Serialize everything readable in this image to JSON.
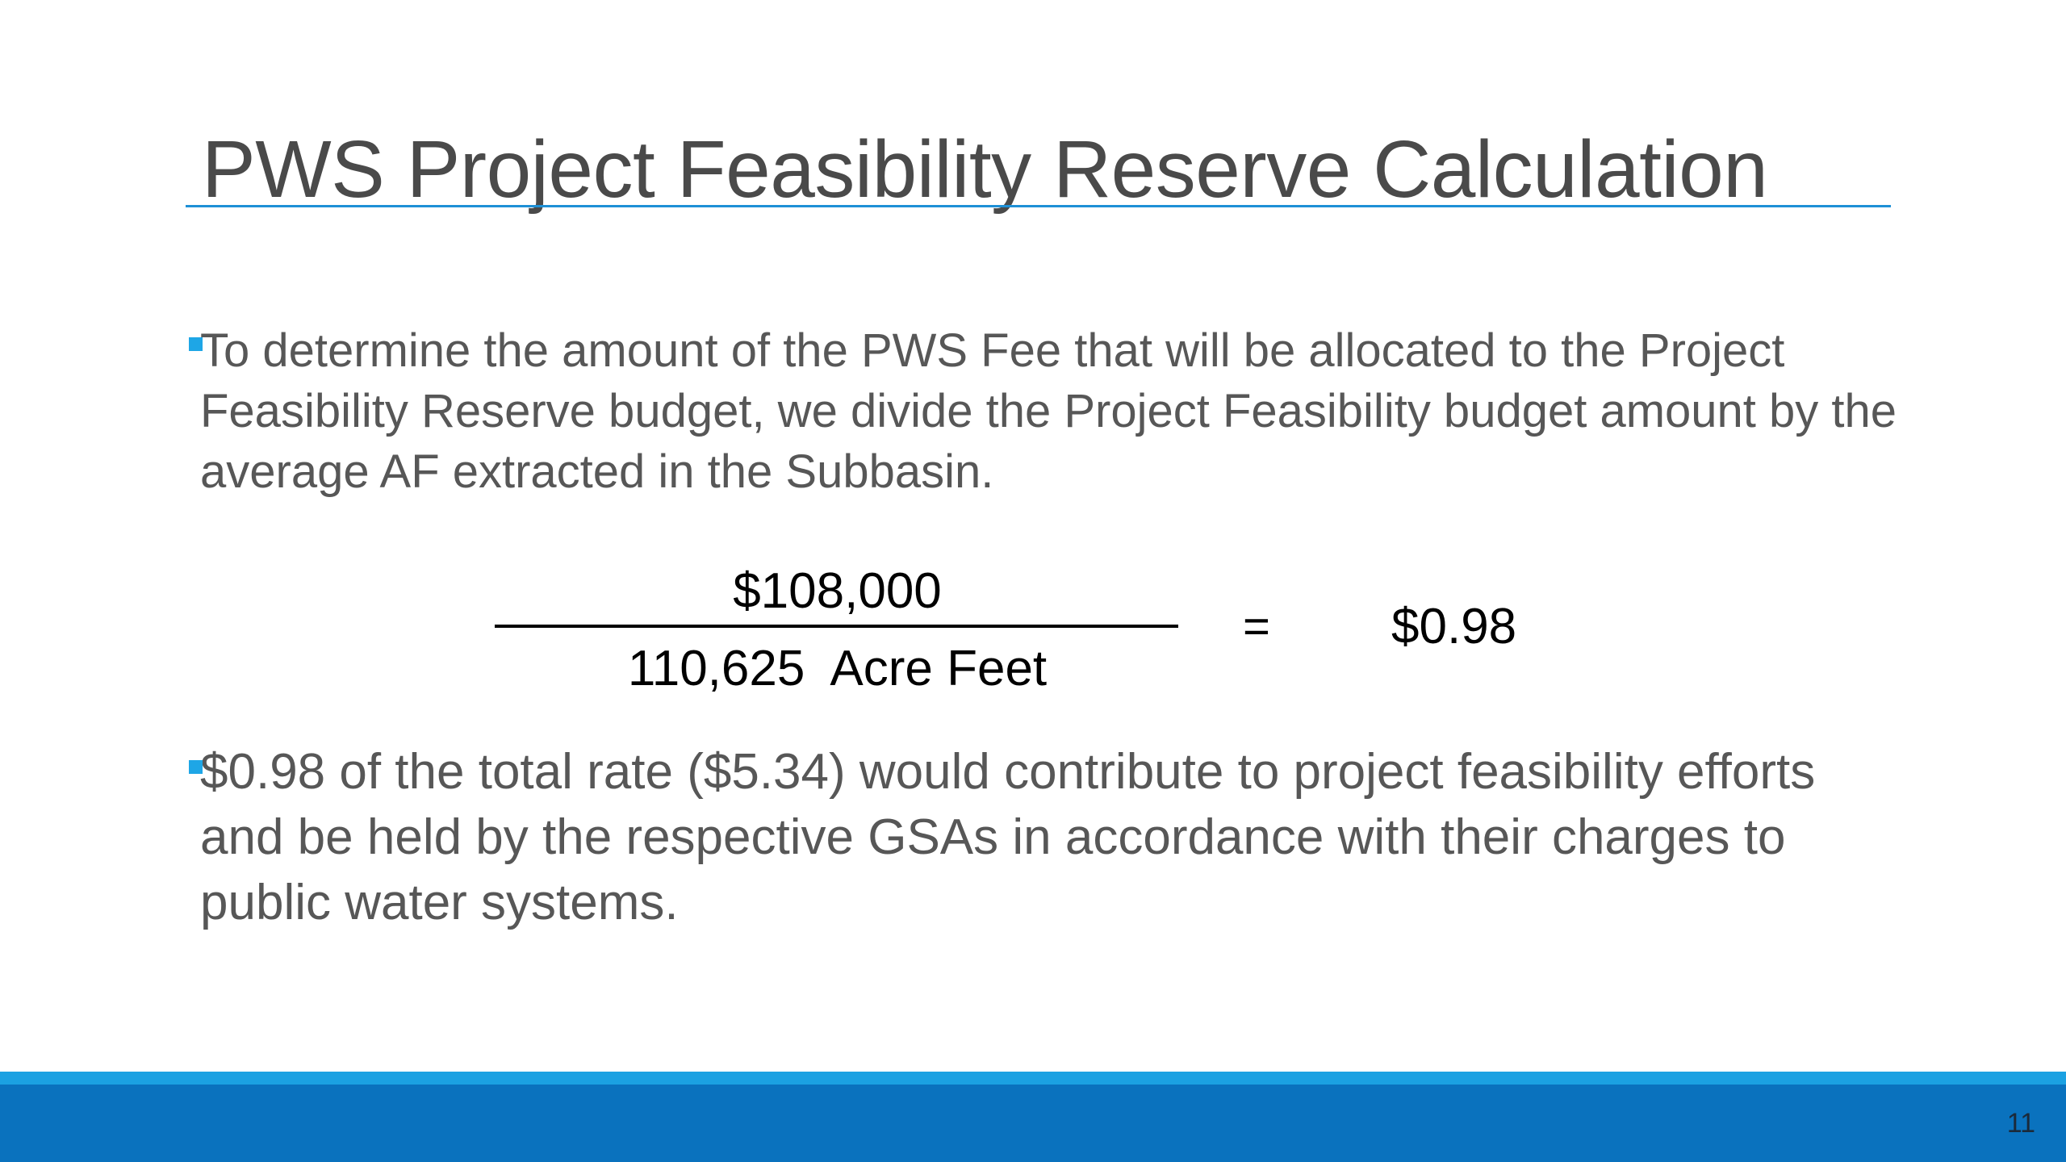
{
  "slide": {
    "title": "PWS Project Feasibility Reserve Calculation",
    "bullets": [
      "To determine the amount of the PWS Fee that will be allocated to the Project Feasibility Reserve budget, we divide the Project Feasibility budget amount by the average AF extracted in the Subbasin.",
      "$0.98 of the total rate ($5.34) would contribute to project feasibility efforts and be held by the respective GSAs in accordance with their charges to public water systems."
    ],
    "equation": {
      "numerator": "$108,000",
      "denominator": "110,625  Acre Feet",
      "operator": "=",
      "result": "$0.98"
    },
    "page_number": "11"
  },
  "colors": {
    "accent": "#1e90d6",
    "bullet_marker": "#1ea6e6",
    "footer_light": "#1ba1e2",
    "footer_dark": "#0a72be",
    "title_text": "#4a4a4a",
    "body_text": "#575757"
  }
}
